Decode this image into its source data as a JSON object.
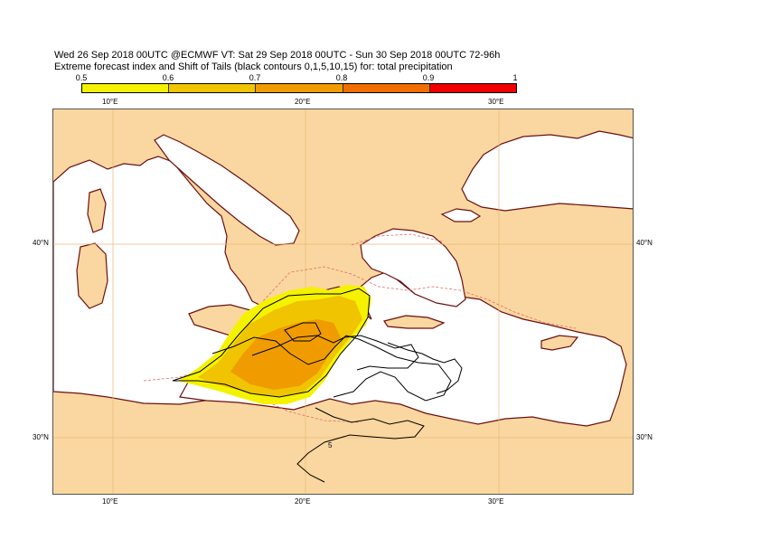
{
  "title": {
    "line1": "Wed 26 Sep 2018 00UTC @ECMWF VT: Sat 29 Sep 2018 00UTC - Sun 30 Sep 2018 00UTC  72-96h",
    "line2": "Extreme forecast index and Shift of Tails (black contours 0,1,5,10,15) for: total precipitation"
  },
  "colorbar": {
    "labels": [
      "0.5",
      "0.6",
      "0.7",
      "0.8",
      "0.9",
      "1"
    ],
    "colors": [
      "#f5f200",
      "#f0c400",
      "#f09c00",
      "#f06e00",
      "#f00000"
    ]
  },
  "axes": {
    "lon_labels": [
      "10°E",
      "20°E",
      "30°E"
    ],
    "lat_labels": [
      "40°N",
      "30°N"
    ]
  },
  "map": {
    "colors": {
      "land": "#fad7a0",
      "sea": "#ffffff",
      "coast": "#6b0f0f",
      "grid": "#e8b977",
      "contour": "#000000",
      "efi_0_5": "#f5f200",
      "efi_0_6": "#f0c400",
      "efi_0_7": "#f09c00",
      "boundary_dashed": "#e26b6b"
    },
    "contour_label": "5"
  }
}
